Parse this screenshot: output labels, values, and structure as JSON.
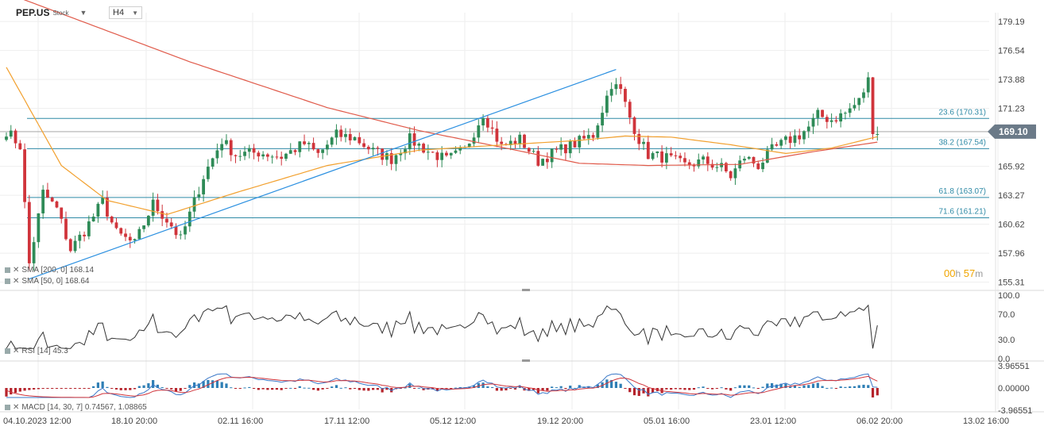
{
  "header": {
    "symbol": "PEP.US",
    "kind": "Stock",
    "timeframe": "H4"
  },
  "timer": {
    "h": "00",
    "h_unit": "h",
    "m": "57",
    "m_unit": "m"
  },
  "legend": {
    "sma200": {
      "name": "SMA [200, 0]",
      "value": "168.14"
    },
    "sma50": {
      "name": "SMA [50, 0]",
      "value": "168.64"
    },
    "rsi": {
      "name": "RSI [14]",
      "value": "45.3"
    },
    "macd": {
      "name": "MACD [14, 30, 7]",
      "value1": "0.74567",
      "value2": "1.08865"
    }
  },
  "colors": {
    "bull": "#2e8b57",
    "bear": "#d0343b",
    "sma200": "#e05a4a",
    "sma50": "#f2a02e",
    "fib": "#2f8aa6",
    "trend": "#2a8fe0",
    "price_badge": "#6b7a88",
    "macd_line": "#3a78c8",
    "signal_line": "#d0343b",
    "hist_pos": "#2f7fb5",
    "hist_neg": "#b5232b"
  },
  "chart_data": {
    "type": "candlestick",
    "symbol": "PEP.US",
    "timeframe": "H4",
    "current_price": 169.1,
    "y_ticks": [
      179.19,
      176.54,
      173.88,
      171.23,
      168.58,
      165.92,
      163.27,
      160.62,
      157.96,
      155.31
    ],
    "y_tick_labels": [
      "179.19",
      "176.54",
      "173.88",
      "171.23",
      "",
      "165.92",
      "163.27",
      "160.62",
      "157.96",
      "155.31"
    ],
    "current_price_label": "169.10",
    "x_tick_labels": [
      "04.10.2023 12:00",
      "18.10 20:00",
      "02.11 16:00",
      "17.11 12:00",
      "05.12 12:00",
      "19.12 20:00",
      "05.01 16:00",
      "23.01 12:00",
      "06.02 20:00",
      "13.02 16:00"
    ],
    "fibonacci_levels": [
      {
        "label": "23.6 (170.31)",
        "value": 170.31
      },
      {
        "label": "38.2 (167.54)",
        "value": 167.54
      },
      {
        "label": "61.8 (163.07)",
        "value": 163.07
      },
      {
        "label": "71.6 (161.21)",
        "value": 161.21
      }
    ],
    "trendline": {
      "from": {
        "bar": 5,
        "price": 155.6
      },
      "to": {
        "bar": 133,
        "price": 174.8
      }
    },
    "price_anchors": [
      [
        0,
        169.2
      ],
      [
        3,
        167.8
      ],
      [
        5,
        157.0
      ],
      [
        8,
        163.5
      ],
      [
        11,
        162.0
      ],
      [
        14,
        158.3
      ],
      [
        17,
        160.0
      ],
      [
        21,
        162.7
      ],
      [
        24,
        159.8
      ],
      [
        28,
        158.8
      ],
      [
        32,
        162.5
      ],
      [
        36,
        160.5
      ],
      [
        38,
        159.2
      ],
      [
        43,
        165.0
      ],
      [
        47,
        168.3
      ],
      [
        50,
        167.0
      ],
      [
        55,
        167.2
      ],
      [
        60,
        166.8
      ],
      [
        65,
        168.0
      ],
      [
        68,
        167.0
      ],
      [
        72,
        168.8
      ],
      [
        76,
        168.5
      ],
      [
        80,
        167.3
      ],
      [
        84,
        166.6
      ],
      [
        88,
        168.4
      ],
      [
        92,
        167.3
      ],
      [
        96,
        166.5
      ],
      [
        100,
        167.4
      ],
      [
        104,
        170.8
      ],
      [
        108,
        167.7
      ],
      [
        112,
        168.4
      ],
      [
        116,
        166.4
      ],
      [
        120,
        167.3
      ],
      [
        124,
        168.0
      ],
      [
        128,
        168.8
      ],
      [
        132,
        173.5
      ],
      [
        134,
        172.8
      ],
      [
        136,
        170.4
      ],
      [
        138,
        168.4
      ],
      [
        140,
        167.0
      ],
      [
        144,
        166.7
      ],
      [
        148,
        166.0
      ],
      [
        152,
        166.4
      ],
      [
        156,
        165.8
      ],
      [
        158,
        165.0
      ],
      [
        161,
        166.8
      ],
      [
        164,
        166.0
      ],
      [
        167,
        167.4
      ],
      [
        170,
        168.2
      ],
      [
        173,
        168.8
      ],
      [
        175,
        169.5
      ],
      [
        177,
        170.6
      ],
      [
        180,
        170.2
      ],
      [
        183,
        170.8
      ],
      [
        186,
        171.9
      ],
      [
        188,
        173.8
      ],
      [
        189,
        169.4
      ],
      [
        190,
        169.1
      ]
    ],
    "sma200_anchors": [
      [
        0,
        181.8
      ],
      [
        40,
        175.5
      ],
      [
        70,
        171.3
      ],
      [
        90,
        169.2
      ],
      [
        110,
        167.5
      ],
      [
        125,
        166.2
      ],
      [
        140,
        166.0
      ],
      [
        160,
        166.1
      ],
      [
        175,
        167.2
      ],
      [
        190,
        168.14
      ]
    ],
    "sma50_anchors": [
      [
        0,
        175.0
      ],
      [
        12,
        166.0
      ],
      [
        22,
        162.8
      ],
      [
        35,
        161.5
      ],
      [
        50,
        163.5
      ],
      [
        70,
        166.0
      ],
      [
        90,
        167.4
      ],
      [
        105,
        167.8
      ],
      [
        125,
        168.3
      ],
      [
        135,
        168.7
      ],
      [
        145,
        168.6
      ],
      [
        158,
        167.9
      ],
      [
        170,
        167.1
      ],
      [
        180,
        167.6
      ],
      [
        190,
        168.64
      ]
    ],
    "rsi": {
      "ticks": [
        100.0,
        70.0,
        30.0,
        0.0
      ],
      "tick_labels": [
        "100.0",
        "70.0",
        "30.0",
        "0.0"
      ]
    },
    "macd": {
      "ticks": [
        3.96551,
        0.0,
        -3.96551
      ],
      "tick_labels": [
        "3.96551",
        "0.00000",
        "-3.96551"
      ]
    }
  }
}
